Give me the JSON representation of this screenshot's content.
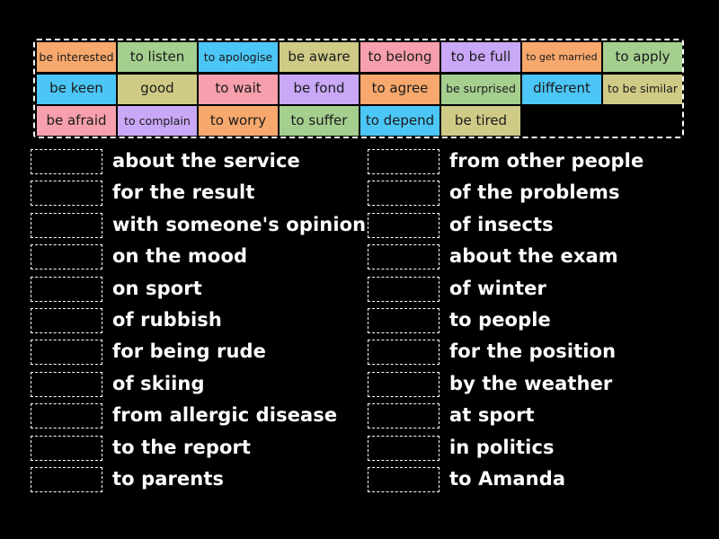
{
  "colors": {
    "background": "#000000",
    "orange": "#f7a86c",
    "green": "#a4cf8f",
    "blue": "#4cc6f6",
    "olive": "#cfcb86",
    "pink": "#f79fac",
    "purple": "#c9a8f7"
  },
  "word_bank": {
    "tiles": [
      {
        "label": "be interested",
        "color": "#f7a86c",
        "row": 0,
        "col": 0,
        "size": "s"
      },
      {
        "label": "to listen",
        "color": "#a4cf8f",
        "row": 0,
        "col": 1,
        "size": "m"
      },
      {
        "label": "to apologise",
        "color": "#4cc6f6",
        "row": 0,
        "col": 2,
        "size": "s"
      },
      {
        "label": "be aware",
        "color": "#cfcb86",
        "row": 0,
        "col": 3,
        "size": "m"
      },
      {
        "label": "to belong",
        "color": "#f79fac",
        "row": 0,
        "col": 4,
        "size": "m"
      },
      {
        "label": "to be full",
        "color": "#c9a8f7",
        "row": 0,
        "col": 5,
        "size": "m"
      },
      {
        "label": "to get married",
        "color": "#f7a86c",
        "row": 0,
        "col": 6,
        "size": "xs"
      },
      {
        "label": "to apply",
        "color": "#a4cf8f",
        "row": 0,
        "col": 7,
        "size": "m"
      },
      {
        "label": "be keen",
        "color": "#4cc6f6",
        "row": 1,
        "col": 0,
        "size": "m"
      },
      {
        "label": "good",
        "color": "#cfcb86",
        "row": 1,
        "col": 1,
        "size": "m"
      },
      {
        "label": "to wait",
        "color": "#f79fac",
        "row": 1,
        "col": 2,
        "size": "m"
      },
      {
        "label": "be fond",
        "color": "#c9a8f7",
        "row": 1,
        "col": 3,
        "size": "m"
      },
      {
        "label": "to agree",
        "color": "#f7a86c",
        "row": 1,
        "col": 4,
        "size": "m"
      },
      {
        "label": "be surprised",
        "color": "#a4cf8f",
        "row": 1,
        "col": 5,
        "size": "s"
      },
      {
        "label": "different",
        "color": "#4cc6f6",
        "row": 1,
        "col": 6,
        "size": "m"
      },
      {
        "label": "to be similar",
        "color": "#cfcb86",
        "row": 1,
        "col": 7,
        "size": "s"
      },
      {
        "label": "be afraid",
        "color": "#f79fac",
        "row": 2,
        "col": 0,
        "size": "m"
      },
      {
        "label": "to complain",
        "color": "#c9a8f7",
        "row": 2,
        "col": 1,
        "size": "s"
      },
      {
        "label": "to worry",
        "color": "#f7a86c",
        "row": 2,
        "col": 2,
        "size": "m"
      },
      {
        "label": "to suffer",
        "color": "#a4cf8f",
        "row": 2,
        "col": 3,
        "size": "m"
      },
      {
        "label": "to depend",
        "color": "#4cc6f6",
        "row": 2,
        "col": 4,
        "size": "m"
      },
      {
        "label": "be tired",
        "color": "#cfcb86",
        "row": 2,
        "col": 5,
        "size": "m"
      }
    ]
  },
  "left_column": [
    "about the service",
    "for the result",
    "with someone's opinion",
    "on the mood",
    "on sport",
    "of rubbish",
    "for being rude",
    "of skiing",
    "from allergic disease",
    "to the report",
    "to parents"
  ],
  "right_column": [
    "from other people",
    "of the problems",
    "of insects",
    "about the exam",
    "of winter",
    "to people",
    "for the position",
    "by the weather",
    "at sport",
    "in politics",
    "to Amanda"
  ]
}
